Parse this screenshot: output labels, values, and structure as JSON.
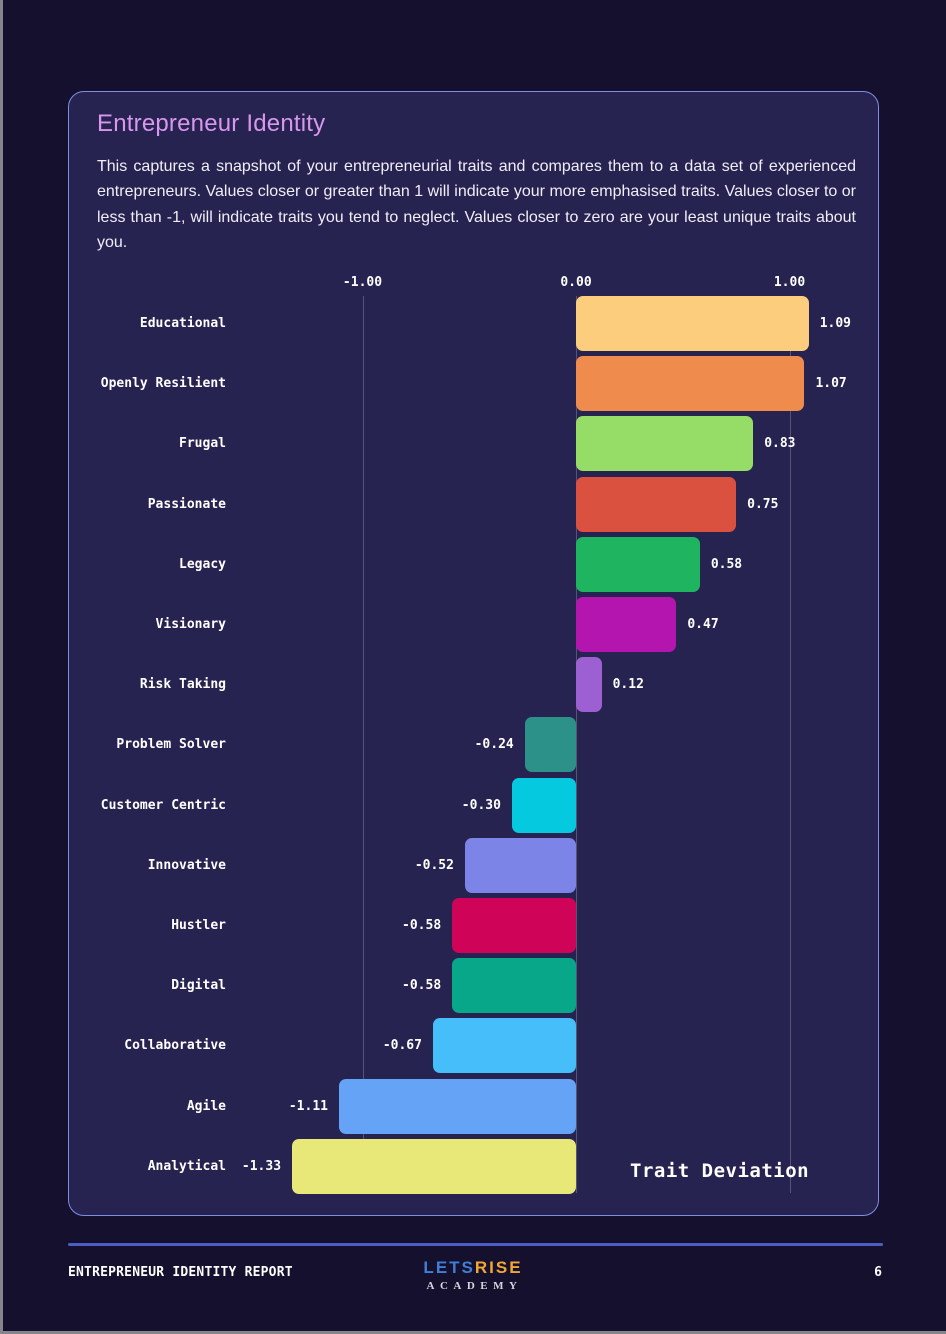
{
  "card": {
    "title": "Entrepreneur Identity",
    "description": "This captures a snapshot of your entrepreneurial traits and compares them to a data set of experienced entrepreneurs. Values closer or greater than 1 will indicate your more emphasised traits. Values closer to or less than -1, will indicate traits you tend to neglect. Values closer to zero are your least unique traits about you."
  },
  "chart_data": {
    "type": "bar",
    "orientation": "horizontal",
    "title": "Trait Deviation",
    "xlim": [
      -1.46,
      1.46
    ],
    "grid": true,
    "x_ticks": [
      {
        "label": "-1.00",
        "value": -1
      },
      {
        "label": "0.00",
        "value": 0
      },
      {
        "label": "1.00",
        "value": 1
      }
    ],
    "categories": [
      "Educational",
      "Openly Resilient",
      "Frugal",
      "Passionate",
      "Legacy",
      "Visionary",
      "Risk Taking",
      "Problem Solver",
      "Customer Centric",
      "Innovative",
      "Hustler",
      "Digital",
      "Collaborative",
      "Agile",
      "Analytical"
    ],
    "values": [
      1.09,
      1.07,
      0.83,
      0.75,
      0.58,
      0.47,
      0.12,
      -0.24,
      -0.3,
      -0.52,
      -0.58,
      -0.58,
      -0.67,
      -1.11,
      -1.33
    ],
    "value_labels": [
      "1.09",
      "1.07",
      "0.83",
      "0.75",
      "0.58",
      "0.47",
      "0.12",
      "-0.24",
      "-0.30",
      "-0.52",
      "-0.58",
      "-0.58",
      "-0.67",
      "-1.11",
      "-1.33"
    ],
    "bar_colors": [
      "#FCCD7C",
      "#EE8B4D",
      "#96DD67",
      "#DA5140",
      "#1FB460",
      "#B415AE",
      "#9C60D2",
      "#2B9189",
      "#05C9DE",
      "#7D84E8",
      "#CF0357",
      "#09A78A",
      "#45BEF9",
      "#64A3F6",
      "#E7E878"
    ]
  },
  "footer": {
    "report_title": "ENTREPRENEUR IDENTITY REPORT",
    "logo": {
      "lets": "LETS",
      "rise": "RISE",
      "academy": "ACADEMY"
    },
    "page_number": "6"
  },
  "colors": {
    "page_bg": "#15102E",
    "card_bg": "#272351",
    "card_border": "#7E8EE4",
    "title_text": "#D897EC",
    "body_text": "#EFEEF6",
    "gridline": "rgba(255,255,255,0.22)",
    "footer_line": "#4C5EC4",
    "logo_lets": "#3F7FD9",
    "logo_rise": "#F0A832"
  }
}
